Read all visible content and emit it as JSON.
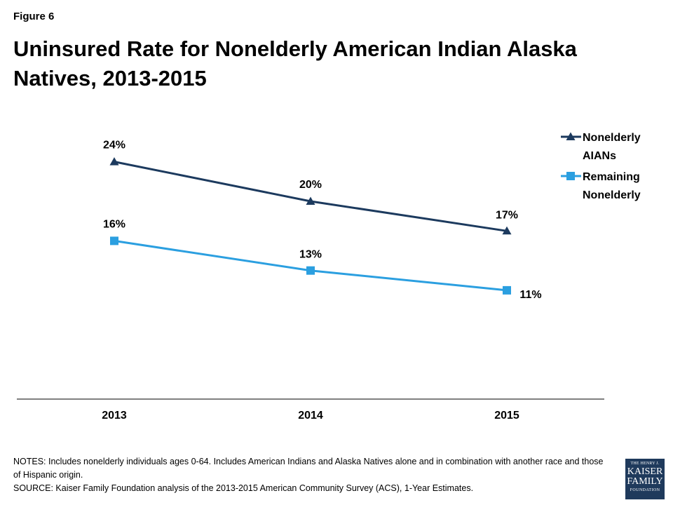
{
  "figure_label": "Figure 6",
  "title": "Uninsured Rate for Nonelderly American Indian Alaska Natives, 2013-2015",
  "notes": {
    "line1": "NOTES: Includes nonelderly individuals ages 0-64. Includes American Indians and Alaska Natives alone and in combination with another race and those of Hispanic origin.",
    "line2": "SOURCE: Kaiser Family Foundation analysis of the 2013-2015 American Community Survey (ACS), 1-Year Estimates."
  },
  "logo": {
    "top": "THE HENRY J.",
    "line1": "KAISER",
    "line2": "FAMILY",
    "bottom": "FOUNDATION"
  },
  "colors": {
    "aian": "#1c3a5e",
    "remaining": "#2b9fe0",
    "axis": "#000000"
  },
  "chart_data": {
    "type": "line",
    "categories": [
      "2013",
      "2014",
      "2015"
    ],
    "ylim": [
      0,
      30
    ],
    "grid": false,
    "legend_position": "top-right",
    "series": [
      {
        "name": "Nonelderly AIANs",
        "legend_lines": [
          "Nonelderly",
          "AIANs"
        ],
        "marker": "triangle",
        "color": "#1c3a5e",
        "values": [
          24,
          20,
          17
        ],
        "labels": [
          "24%",
          "20%",
          "17%"
        ]
      },
      {
        "name": "Remaining Nonelderly",
        "legend_lines": [
          "Remaining",
          "Nonelderly"
        ],
        "marker": "square",
        "color": "#2b9fe0",
        "values": [
          16,
          13,
          11
        ],
        "labels": [
          "16%",
          "13%",
          "11%"
        ]
      }
    ]
  }
}
